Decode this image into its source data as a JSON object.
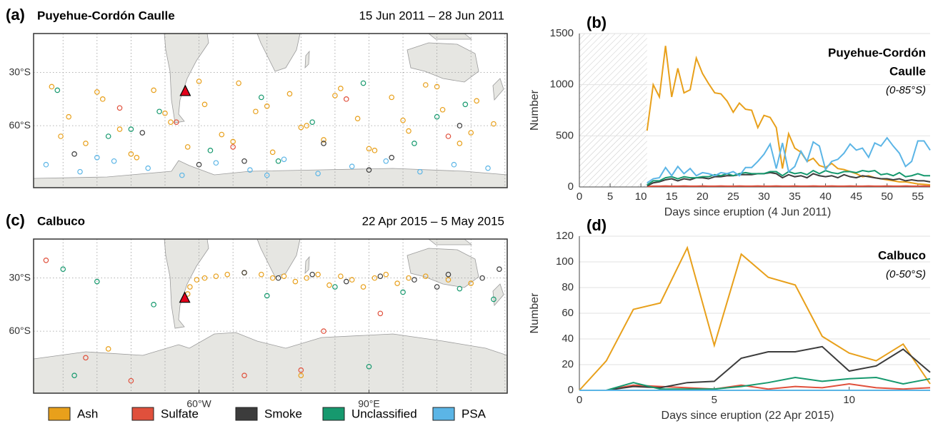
{
  "chart_data": [
    {
      "type": "map",
      "panel_label": "(a)",
      "title": "Puyehue-Cordón Caulle",
      "date_range": "15 Jun 2011 – 28 Jun 2011",
      "xlim": [
        -206,
        212
      ],
      "ylim": [
        -8,
        -95
      ],
      "xgrid": [
        -180,
        -150,
        -120,
        -90,
        -60,
        -30,
        0,
        30,
        60,
        90,
        120,
        150,
        180,
        210
      ],
      "yticks": [
        {
          "value": -30,
          "label": "30°S"
        },
        {
          "value": -60,
          "label": "60°S"
        }
      ],
      "volcano": {
        "lon": -72.1,
        "lat": -40.6
      },
      "series": [
        {
          "name": "Ash",
          "color": "#e8a01b",
          "x": [
            -190,
            -175,
            -160,
            -145,
            -130,
            -115,
            -100,
            -85,
            -70,
            -55,
            -40,
            -25,
            -10,
            5,
            20,
            35,
            50,
            65,
            80,
            95,
            110,
            125,
            140,
            155,
            170,
            185,
            200,
            -182,
            -150,
            -120,
            -90,
            -60,
            -30,
            0,
            30,
            60,
            90,
            120,
            150,
            180
          ],
          "y": [
            -38,
            -55,
            -70,
            -45,
            -62,
            -78,
            -40,
            -58,
            -72,
            -48,
            -65,
            -36,
            -52,
            -75,
            -42,
            -60,
            -68,
            -39,
            -56,
            -74,
            -44,
            -63,
            -37,
            -51,
            -70,
            -46,
            -59,
            -66,
            -41,
            -76,
            -53,
            -35,
            -69,
            -49,
            -61,
            -43,
            -73,
            -57,
            -38,
            -64
          ]
        },
        {
          "name": "Sulfate",
          "color": "#e0503c",
          "x": [
            -130,
            -30,
            70,
            160,
            -80
          ],
          "y": [
            -50,
            -72,
            -45,
            -66,
            -58
          ]
        },
        {
          "name": "Smoke",
          "color": "#3c3c3c",
          "x": [
            -170,
            -110,
            -20,
            50,
            110,
            170,
            -60,
            90
          ],
          "y": [
            -76,
            -64,
            -80,
            -70,
            -78,
            -60,
            -82,
            -85
          ]
        },
        {
          "name": "Unclassified",
          "color": "#16996e",
          "x": [
            -185,
            -140,
            -95,
            -50,
            -5,
            40,
            85,
            130,
            175,
            -120,
            10,
            150
          ],
          "y": [
            -40,
            -66,
            -52,
            -74,
            -44,
            -58,
            -36,
            -70,
            -48,
            -62,
            -80,
            -55
          ]
        },
        {
          "name": "PSA",
          "color": "#5bb5e6",
          "x": [
            -195,
            -165,
            -135,
            -105,
            -75,
            -45,
            -15,
            15,
            45,
            75,
            105,
            135,
            165,
            195,
            -150,
            0
          ],
          "y": [
            -82,
            -86,
            -80,
            -84,
            -88,
            -81,
            -85,
            -79,
            -87,
            -83,
            -80,
            -86,
            -82,
            -84,
            -78,
            -88
          ]
        }
      ]
    },
    {
      "type": "line",
      "panel_label": "(b)",
      "annotation": [
        "Puyehue-Cordón",
        "Caulle"
      ],
      "annotation_sub": "(0-85°S)",
      "xlabel": "Days since eruption (4 Jun 2011)",
      "ylabel": "Number",
      "xlim": [
        0,
        57
      ],
      "ylim": [
        0,
        1500
      ],
      "xticks": [
        0,
        5,
        10,
        15,
        20,
        25,
        30,
        35,
        40,
        45,
        50,
        55
      ],
      "yticks": [
        0,
        500,
        1000,
        1500
      ],
      "shaded_xrange": [
        0,
        11
      ],
      "x": [
        11,
        12,
        13,
        14,
        15,
        16,
        17,
        18,
        19,
        20,
        21,
        22,
        23,
        24,
        25,
        26,
        27,
        28,
        29,
        30,
        31,
        32,
        33,
        34,
        35,
        36,
        37,
        38,
        39,
        40,
        41,
        42,
        43,
        44,
        45,
        46,
        47,
        48,
        49,
        50,
        51,
        52,
        53,
        54,
        55,
        56,
        57
      ],
      "series": [
        {
          "name": "Ash",
          "color": "#e8a01b",
          "values": [
            550,
            1000,
            880,
            1380,
            880,
            1160,
            920,
            950,
            1260,
            1110,
            1010,
            920,
            910,
            840,
            730,
            820,
            760,
            750,
            580,
            700,
            680,
            580,
            180,
            520,
            380,
            340,
            250,
            280,
            210,
            190,
            230,
            180,
            170,
            150,
            130,
            100,
            110,
            90,
            80,
            70,
            60,
            50,
            50,
            40,
            30,
            25,
            20
          ]
        },
        {
          "name": "Sulfate",
          "color": "#e0503c",
          "values": [
            5,
            8,
            8,
            10,
            8,
            8,
            10,
            8,
            8,
            10,
            8,
            8,
            10,
            8,
            8,
            10,
            8,
            8,
            10,
            8,
            8,
            10,
            8,
            8,
            10,
            8,
            8,
            10,
            8,
            8,
            10,
            8,
            8,
            10,
            8,
            8,
            10,
            8,
            8,
            10,
            8,
            8,
            10,
            8,
            8,
            10,
            8
          ]
        },
        {
          "name": "Smoke",
          "color": "#3c3c3c",
          "values": [
            10,
            40,
            50,
            70,
            80,
            60,
            80,
            70,
            90,
            90,
            80,
            100,
            100,
            110,
            110,
            120,
            120,
            120,
            130,
            130,
            140,
            130,
            90,
            120,
            100,
            110,
            90,
            130,
            110,
            100,
            110,
            90,
            120,
            100,
            90,
            110,
            100,
            90,
            80,
            80,
            70,
            80,
            60,
            70,
            60,
            60,
            50
          ]
        },
        {
          "name": "Unclassified",
          "color": "#16996e",
          "values": [
            20,
            60,
            60,
            90,
            100,
            80,
            100,
            90,
            90,
            100,
            100,
            120,
            110,
            130,
            110,
            130,
            140,
            130,
            130,
            130,
            150,
            150,
            110,
            150,
            130,
            140,
            120,
            160,
            130,
            160,
            140,
            130,
            150,
            150,
            140,
            160,
            150,
            160,
            120,
            130,
            110,
            140,
            100,
            110,
            130,
            110,
            110
          ]
        },
        {
          "name": "PSA",
          "color": "#5bb5e6",
          "values": [
            40,
            80,
            90,
            190,
            110,
            200,
            130,
            180,
            110,
            140,
            130,
            110,
            140,
            130,
            150,
            110,
            190,
            190,
            250,
            320,
            420,
            180,
            430,
            150,
            200,
            350,
            250,
            440,
            400,
            170,
            250,
            270,
            330,
            420,
            360,
            380,
            290,
            430,
            400,
            480,
            400,
            330,
            200,
            250,
            450,
            450,
            360
          ]
        }
      ]
    },
    {
      "type": "map",
      "panel_label": "(c)",
      "title": "Calbuco",
      "date_range": "22 Apr 2015 – 5 May 2015",
      "xlim": [
        -206,
        212
      ],
      "ylim": [
        -8,
        -95
      ],
      "xgrid": [
        -180,
        -150,
        -120,
        -90,
        -60,
        -30,
        0,
        30,
        60,
        90,
        120,
        150,
        180,
        210
      ],
      "xticks": [
        {
          "value": -60,
          "label": "60°W"
        },
        {
          "value": 90,
          "label": "90°E"
        }
      ],
      "yticks": [
        {
          "value": -30,
          "label": "30°S"
        },
        {
          "value": -60,
          "label": "60°S"
        }
      ],
      "volcano": {
        "lon": -72.6,
        "lat": -41.3
      },
      "series": [
        {
          "name": "Ash",
          "color": "#e8a01b",
          "x": [
            -70,
            -68,
            -62,
            -55,
            -45,
            -35,
            -20,
            -5,
            5,
            15,
            25,
            35,
            45,
            55,
            65,
            75,
            85,
            95,
            105,
            115,
            125,
            140,
            160,
            180,
            -140,
            30
          ],
          "y": [
            -39,
            -35,
            -31,
            -30,
            -29,
            -28,
            -27,
            -28,
            -30,
            -29,
            -32,
            -30,
            -28,
            -34,
            -29,
            -31,
            -35,
            -30,
            -28,
            -33,
            -30,
            -29,
            -31,
            -33,
            -70,
            -85
          ]
        },
        {
          "name": "Sulfate",
          "color": "#e0503c",
          "x": [
            -195,
            -160,
            -20,
            50,
            100,
            -120,
            30
          ],
          "y": [
            -20,
            -75,
            -85,
            -60,
            -50,
            -88,
            -82
          ]
        },
        {
          "name": "Smoke",
          "color": "#3c3c3c",
          "x": [
            -20,
            10,
            40,
            70,
            100,
            130,
            160,
            190,
            205,
            150
          ],
          "y": [
            -27,
            -30,
            -28,
            -32,
            -29,
            -31,
            -28,
            -30,
            -25,
            -35
          ]
        },
        {
          "name": "Unclassified",
          "color": "#16996e",
          "x": [
            -180,
            -150,
            -100,
            0,
            60,
            120,
            170,
            200,
            -170,
            90
          ],
          "y": [
            -25,
            -32,
            -45,
            -40,
            -35,
            -38,
            -36,
            -42,
            -85,
            -80
          ]
        }
      ]
    },
    {
      "type": "line",
      "panel_label": "(d)",
      "annotation": [
        "Calbuco"
      ],
      "annotation_sub": "(0-50°S)",
      "xlabel": "Days since eruption (22 Apr 2015)",
      "ylabel": "Number",
      "xlim": [
        0,
        13
      ],
      "ylim": [
        0,
        120
      ],
      "xticks": [
        0,
        5,
        10
      ],
      "yticks": [
        0,
        20,
        40,
        60,
        80,
        100,
        120
      ],
      "x": [
        0,
        1,
        2,
        3,
        4,
        5,
        6,
        7,
        8,
        9,
        10,
        11,
        12,
        13
      ],
      "series": [
        {
          "name": "Ash",
          "color": "#e8a01b",
          "values": [
            0,
            23,
            63,
            68,
            111,
            35,
            106,
            88,
            82,
            42,
            29,
            23,
            36,
            5
          ]
        },
        {
          "name": "Sulfate",
          "color": "#e0503c",
          "values": [
            0,
            0,
            4,
            3,
            2,
            1,
            4,
            1,
            3,
            2,
            5,
            2,
            1,
            2
          ]
        },
        {
          "name": "Smoke",
          "color": "#3c3c3c",
          "values": [
            0,
            0,
            3,
            2,
            6,
            7,
            25,
            30,
            30,
            34,
            15,
            19,
            32,
            14
          ]
        },
        {
          "name": "Unclassified",
          "color": "#16996e",
          "values": [
            0,
            0,
            6,
            1,
            1,
            1,
            3,
            6,
            10,
            7,
            9,
            10,
            5,
            9
          ]
        },
        {
          "name": "PSA",
          "color": "#5bb5e6",
          "values": [
            0,
            0,
            0,
            0,
            0,
            0,
            0,
            0,
            0,
            0,
            0,
            0,
            0,
            0
          ]
        }
      ]
    }
  ]
}
